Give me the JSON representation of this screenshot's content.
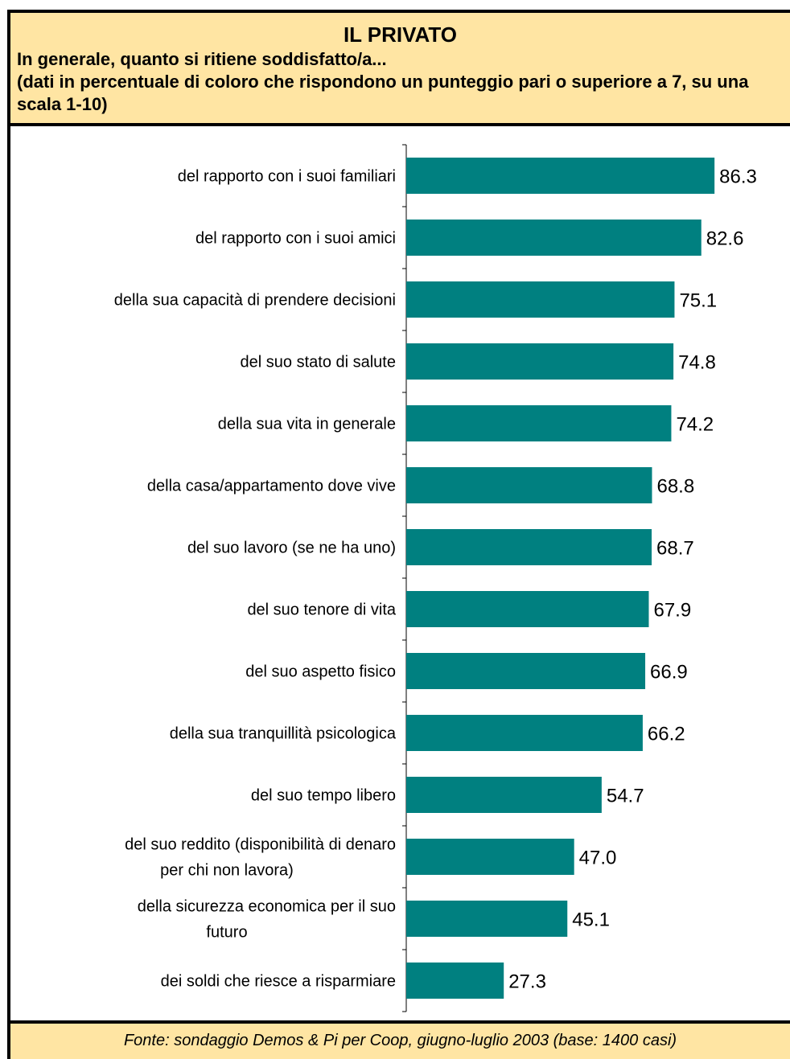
{
  "chart_data": {
    "type": "bar",
    "orientation": "horizontal",
    "title": "IL PRIVATO",
    "subtitle": "In generale, quanto si ritiene soddisfatto/a...\n(dati in percentuale di coloro che rispondono un punteggio pari o superiore a 7, su una scala 1-10)",
    "categories": [
      [
        "del rapporto con i suoi familiari"
      ],
      [
        "del rapporto con i suoi amici"
      ],
      [
        "della sua capacità di prendere decisioni"
      ],
      [
        "del suo stato di salute"
      ],
      [
        "della sua vita in generale"
      ],
      [
        "della casa/appartamento dove vive"
      ],
      [
        "del suo lavoro (se ne ha uno)"
      ],
      [
        "del suo tenore di vita"
      ],
      [
        "del suo aspetto fisico"
      ],
      [
        "della sua tranquillità psicologica"
      ],
      [
        "del suo tempo libero"
      ],
      [
        "del suo reddito (disponibilità di denaro",
        "per chi non lavora)"
      ],
      [
        "della sicurezza economica per il suo",
        "futuro"
      ],
      [
        "dei soldi che riesce a risparmiare"
      ]
    ],
    "values": [
      86.3,
      82.6,
      75.1,
      74.8,
      74.2,
      68.8,
      68.7,
      67.9,
      66.9,
      66.2,
      54.7,
      47.0,
      45.1,
      27.3
    ],
    "value_labels": [
      "86.3",
      "82.6",
      "75.1",
      "74.8",
      "74.2",
      "68.8",
      "68.7",
      "67.9",
      "66.9",
      "66.2",
      "54.7",
      "47.0",
      "45.1",
      "27.3"
    ],
    "xlim": [
      0,
      100
    ],
    "grid": false,
    "bar_color": "#008080"
  },
  "footer": {
    "source": "Fonte: sondaggio Demos & Pi per Coop, giugno-luglio 2003 (base: 1400 casi)"
  }
}
